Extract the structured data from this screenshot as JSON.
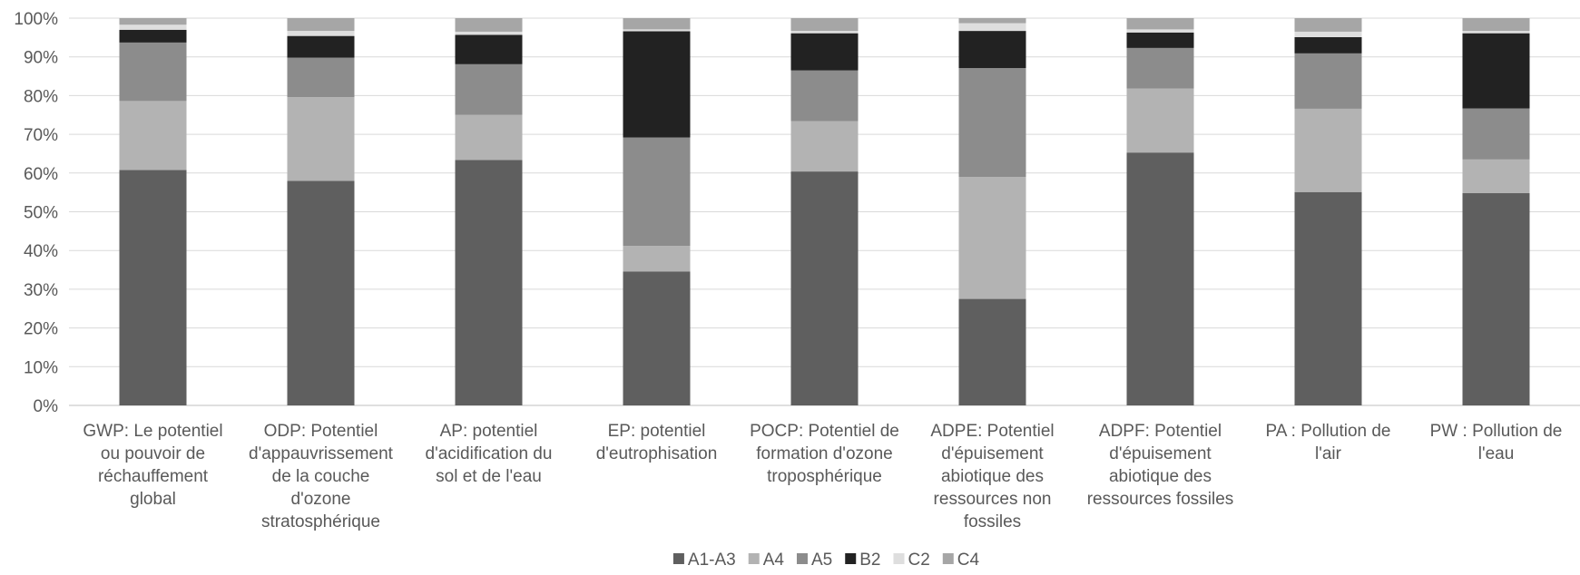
{
  "chart_data": {
    "type": "bar",
    "stacked": true,
    "percent": true,
    "title": "",
    "xlabel": "",
    "ylabel": "",
    "ylim": [
      0,
      100
    ],
    "yticks": [
      "0%",
      "10%",
      "20%",
      "30%",
      "40%",
      "50%",
      "60%",
      "70%",
      "80%",
      "90%",
      "100%"
    ],
    "grid": true,
    "legend_position": "bottom",
    "categories": [
      [
        "GWP: Le potentiel",
        "ou pouvoir de",
        "réchauffement",
        "global"
      ],
      [
        "ODP: Potentiel",
        "d'appauvrissement",
        "de la couche",
        "d'ozone",
        "stratosphérique"
      ],
      [
        "AP: potentiel",
        "d'acidification du",
        "sol et de l'eau"
      ],
      [
        "EP: potentiel",
        "d'eutrophisation"
      ],
      [
        "POCP: Potentiel de",
        "formation d'ozone",
        "troposphérique"
      ],
      [
        "ADPE: Potentiel",
        "d'épuisement",
        "abiotique des",
        "ressources non",
        "fossiles"
      ],
      [
        "ADPF: Potentiel",
        "d'épuisement",
        "abiotique des",
        "ressources fossiles"
      ],
      [
        "PA : Pollution de",
        "l'air"
      ],
      [
        "PW : Pollution de",
        "l'eau"
      ]
    ],
    "series": [
      {
        "name": "A1-A3",
        "color": "#5f5f5f",
        "values": [
          60.8,
          58.0,
          63.4,
          34.6,
          60.4,
          27.5,
          65.3,
          55.1,
          54.8
        ]
      },
      {
        "name": "A4",
        "color": "#b3b3b3",
        "values": [
          17.8,
          21.6,
          11.6,
          6.6,
          13.0,
          31.5,
          16.5,
          21.5,
          8.7
        ]
      },
      {
        "name": "A5",
        "color": "#8c8c8c",
        "values": [
          15.1,
          10.2,
          13.1,
          28.0,
          13.1,
          28.1,
          10.5,
          14.3,
          13.2
        ]
      },
      {
        "name": "B2",
        "color": "#222222",
        "values": [
          3.3,
          5.6,
          7.6,
          27.4,
          9.6,
          9.6,
          4.0,
          4.2,
          19.4
        ]
      },
      {
        "name": "C2",
        "color": "#dedede",
        "values": [
          1.3,
          1.3,
          0.8,
          0.5,
          0.6,
          2.0,
          0.8,
          1.4,
          0.6
        ]
      },
      {
        "name": "C4",
        "color": "#a6a6a6",
        "values": [
          1.7,
          3.3,
          3.5,
          2.9,
          3.3,
          1.3,
          2.9,
          3.5,
          3.3
        ]
      }
    ]
  }
}
